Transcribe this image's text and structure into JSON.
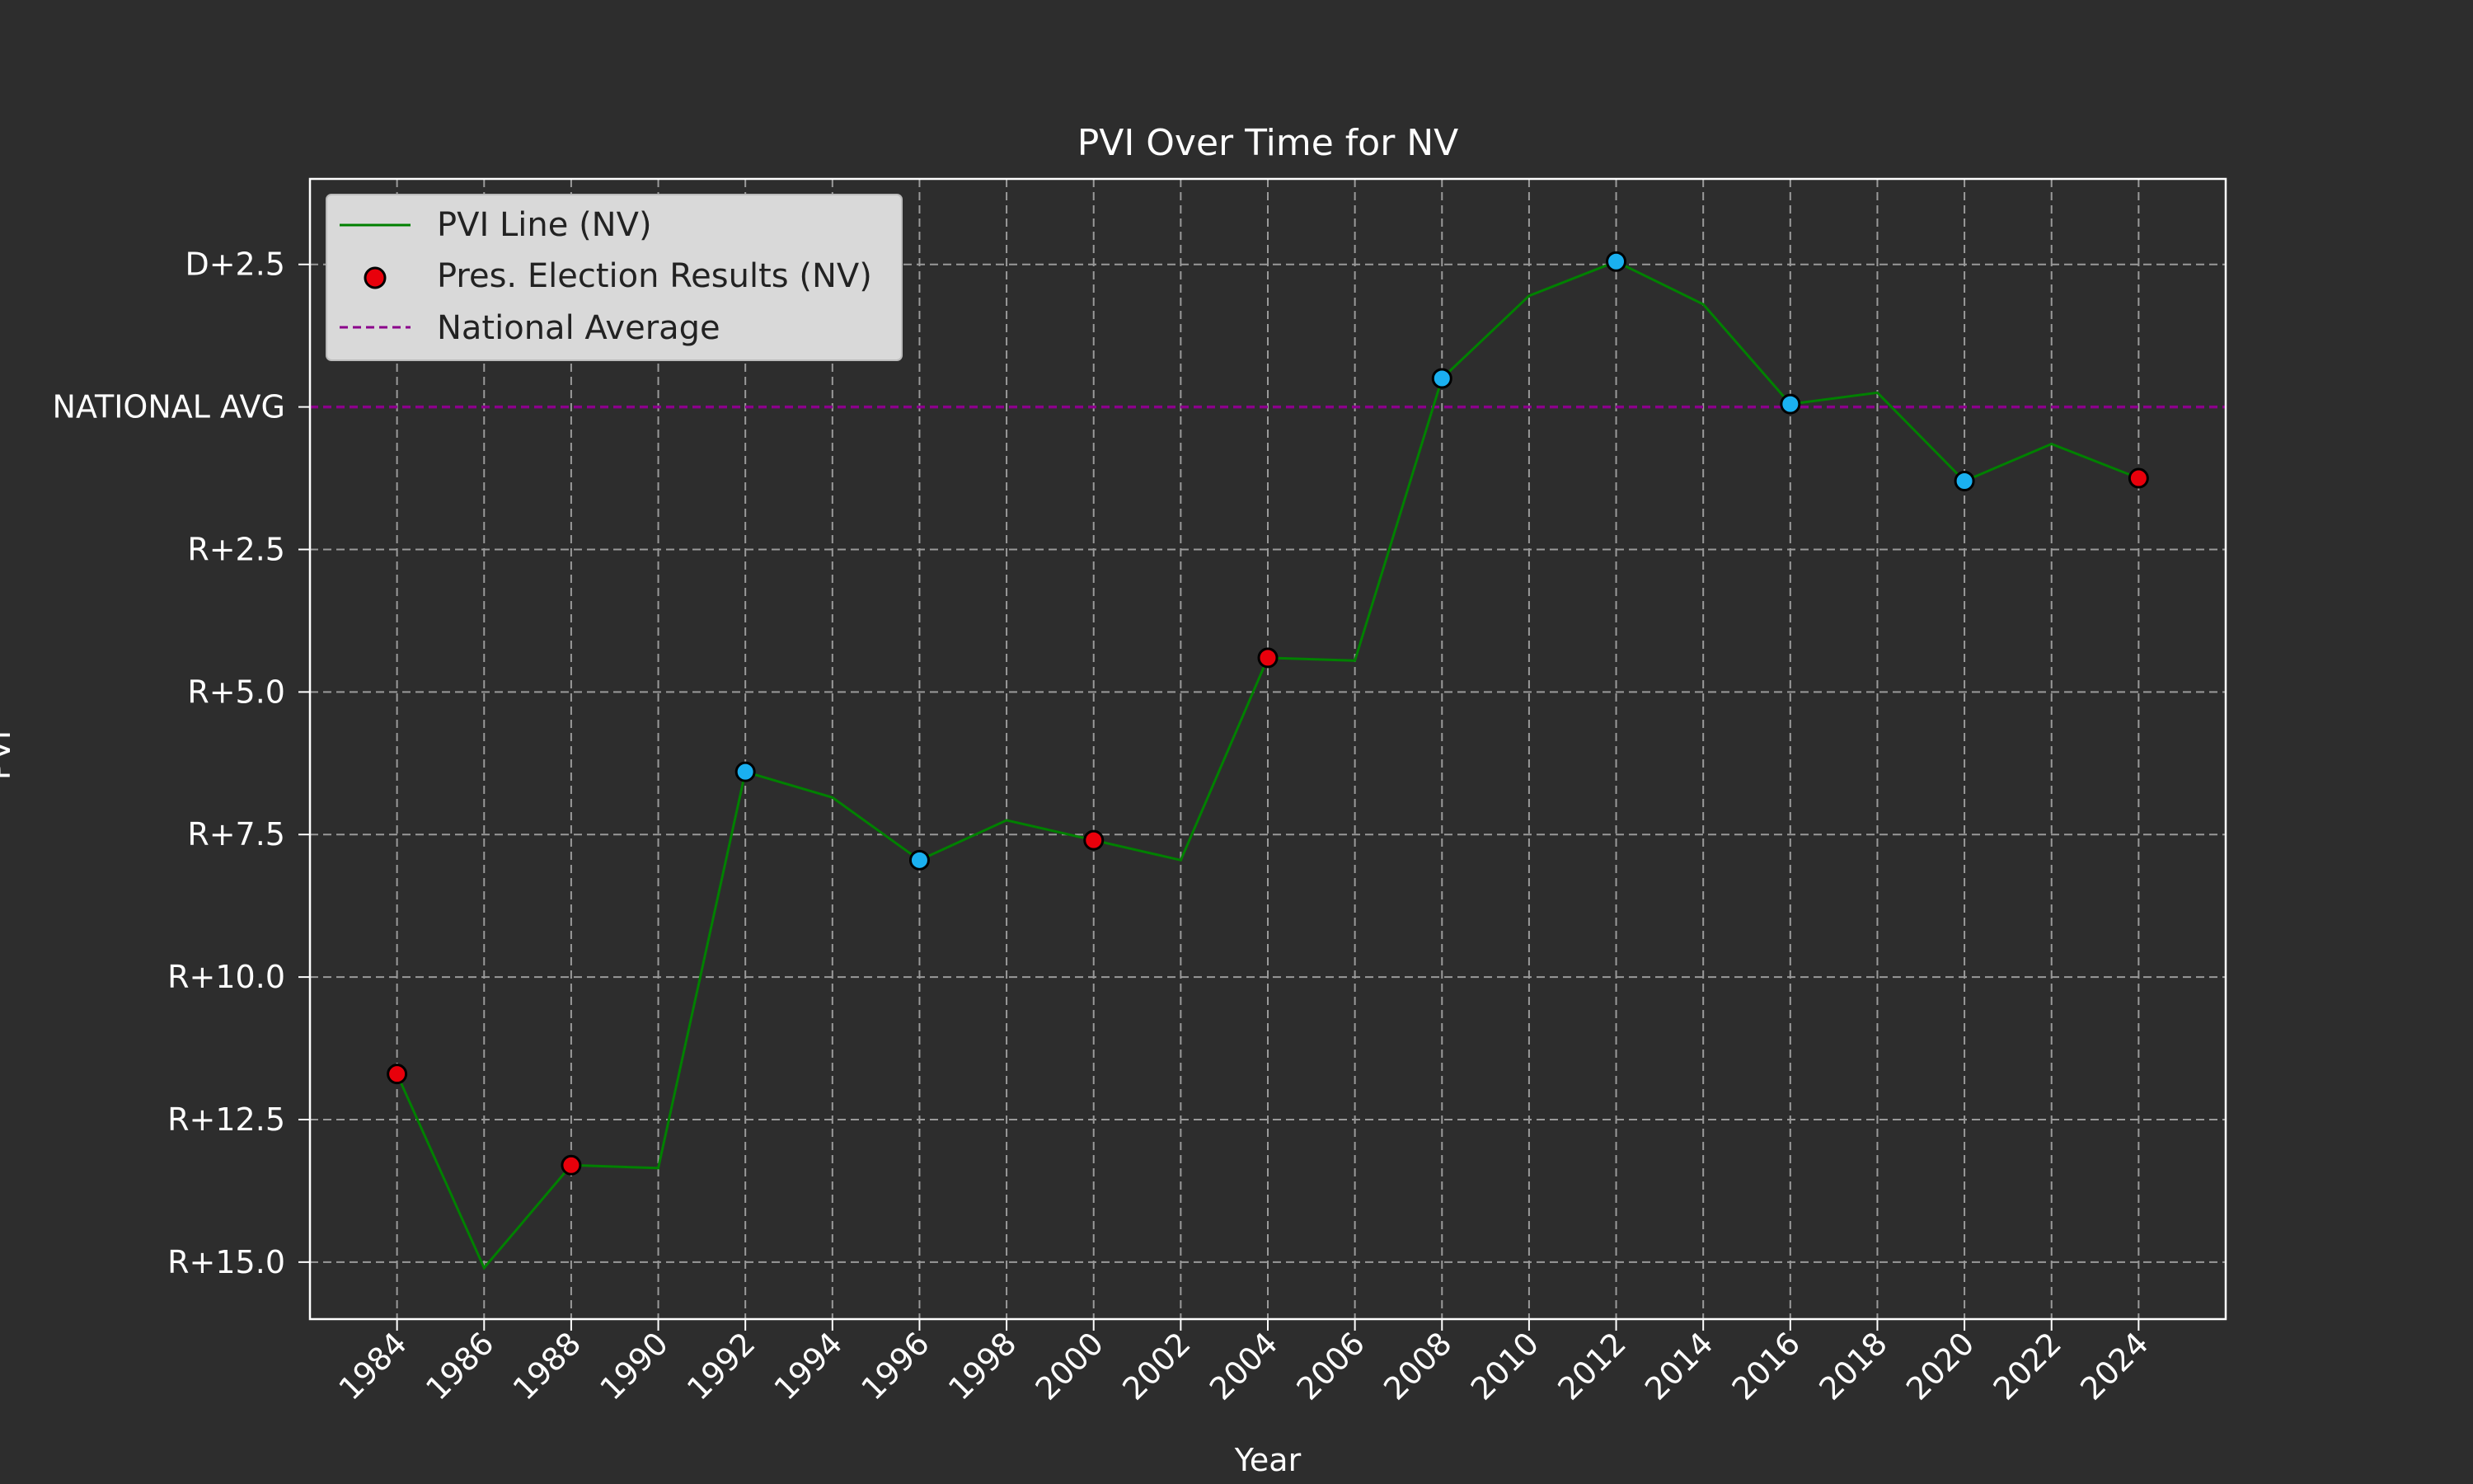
{
  "chart_data": {
    "type": "line",
    "title": "PVI Over Time for NV",
    "xlabel": "Year",
    "ylabel": "PVI",
    "x": [
      1984,
      1986,
      1988,
      1990,
      1992,
      1994,
      1996,
      1998,
      2000,
      2002,
      2004,
      2006,
      2008,
      2010,
      2012,
      2014,
      2016,
      2018,
      2020,
      2022,
      2024
    ],
    "ylim": [
      -16,
      4
    ],
    "y_ticks": [
      {
        "value": 2.5,
        "label": "D+2.5"
      },
      {
        "value": 0,
        "label": "NATIONAL AVG"
      },
      {
        "value": -2.5,
        "label": "R+2.5"
      },
      {
        "value": -5,
        "label": "R+5.0"
      },
      {
        "value": -7.5,
        "label": "R+7.5"
      },
      {
        "value": -10,
        "label": "R+10.0"
      },
      {
        "value": -12.5,
        "label": "R+12.5"
      },
      {
        "value": -15,
        "label": "R+15.0"
      }
    ],
    "grid": true,
    "legend_position": "top-left",
    "series": [
      {
        "name": "PVI Line (NV)",
        "kind": "line",
        "color": "#008000",
        "y": [
          -11.7,
          -15.1,
          -13.3,
          -13.35,
          -6.4,
          -6.85,
          -7.95,
          -7.25,
          -7.6,
          -7.95,
          -4.4,
          -4.45,
          0.5,
          1.95,
          2.55,
          1.8,
          0.05,
          0.25,
          -1.3,
          -0.65,
          -1.25
        ]
      },
      {
        "name": "Pres. Election Results (NV)",
        "kind": "scatter",
        "points": [
          {
            "x": 1984,
            "y": -11.7,
            "color": "#e8000b"
          },
          {
            "x": 1988,
            "y": -13.3,
            "color": "#e8000b"
          },
          {
            "x": 1992,
            "y": -6.4,
            "color": "#1ab0f0"
          },
          {
            "x": 1996,
            "y": -7.95,
            "color": "#1ab0f0"
          },
          {
            "x": 2000,
            "y": -7.6,
            "color": "#e8000b"
          },
          {
            "x": 2004,
            "y": -4.4,
            "color": "#e8000b"
          },
          {
            "x": 2008,
            "y": 0.5,
            "color": "#1ab0f0"
          },
          {
            "x": 2012,
            "y": 2.55,
            "color": "#1ab0f0"
          },
          {
            "x": 2016,
            "y": 0.05,
            "color": "#1ab0f0"
          },
          {
            "x": 2020,
            "y": -1.3,
            "color": "#1ab0f0"
          },
          {
            "x": 2024,
            "y": -1.25,
            "color": "#e8000b"
          }
        ]
      },
      {
        "name": "National Average",
        "kind": "hline",
        "y": 0,
        "color": "#8b008b"
      }
    ],
    "colors": {
      "background": "#2d2d2d",
      "grid": "#9a9a9a",
      "axes": "#ffffff",
      "legend_bg": "#d9d9d9",
      "legend_marker": "#e8000b"
    }
  }
}
